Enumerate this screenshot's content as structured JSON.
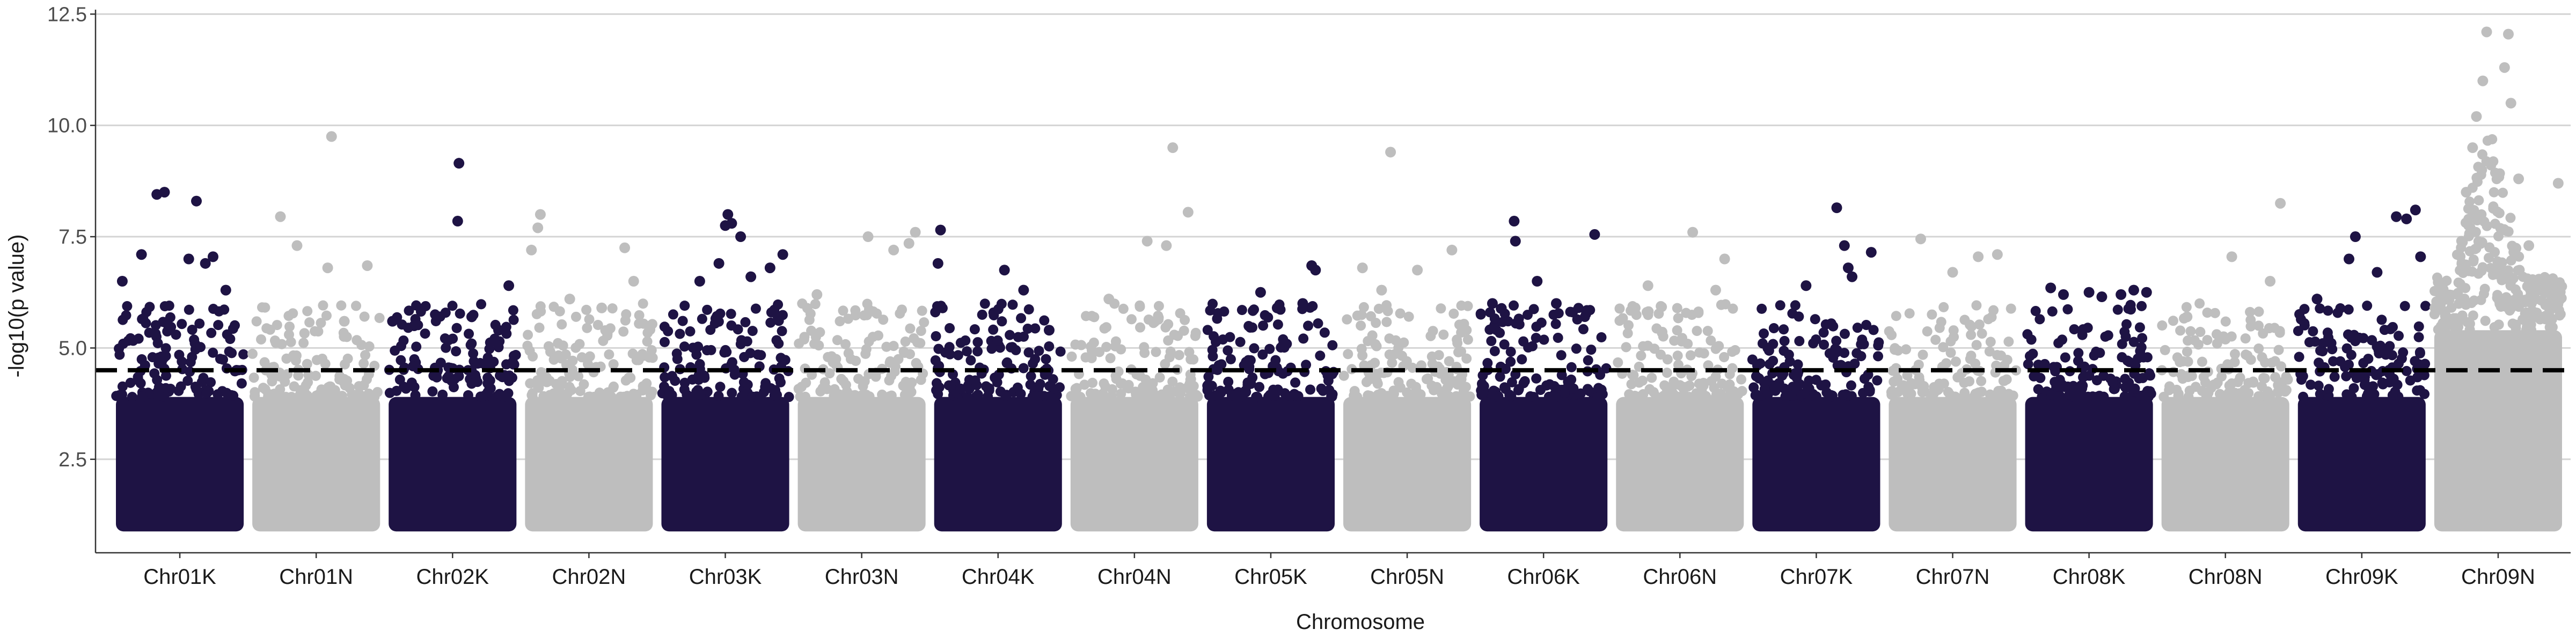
{
  "chart_data": {
    "type": "scatter",
    "subtype": "manhattan",
    "title": "",
    "xlabel": "Chromosome",
    "ylabel": "-log10(p value)",
    "ylim": [
      0.4,
      12.6
    ],
    "yticks": [
      2.5,
      5.0,
      7.5,
      10.0,
      12.5
    ],
    "ytick_labels": [
      "2.5",
      "5.0",
      "7.5",
      "10.0",
      "12.5"
    ],
    "grid": "horizontal major",
    "legend": "none",
    "threshold": {
      "y": 4.5,
      "style": "dashed",
      "color": "#000000"
    },
    "colors": {
      "dark": "#1e1344",
      "light": "#bebebe",
      "grid": "#d4d4d4",
      "axis": "#333333"
    },
    "chromosomes": [
      {
        "name": "Chr01K",
        "color": "dark",
        "top_points": [
          [
            0.05,
            6.5
          ],
          [
            0.2,
            7.1
          ],
          [
            0.32,
            8.45
          ],
          [
            0.38,
            8.5
          ],
          [
            0.63,
            8.3
          ],
          [
            0.57,
            7.0
          ],
          [
            0.76,
            7.05
          ],
          [
            0.7,
            6.9
          ],
          [
            0.86,
            6.3
          ]
        ]
      },
      {
        "name": "Chr01N",
        "color": "light",
        "top_points": [
          [
            0.22,
            7.95
          ],
          [
            0.35,
            7.3
          ],
          [
            0.62,
            9.75
          ],
          [
            0.59,
            6.8
          ],
          [
            0.9,
            6.85
          ],
          [
            0.72,
            5.6
          ]
        ]
      },
      {
        "name": "Chr02K",
        "color": "dark",
        "top_points": [
          [
            0.03,
            5.6
          ],
          [
            0.2,
            5.5
          ],
          [
            0.55,
            9.15
          ],
          [
            0.54,
            7.85
          ],
          [
            0.65,
            5.7
          ],
          [
            0.86,
            5.4
          ],
          [
            0.94,
            6.4
          ]
        ]
      },
      {
        "name": "Chr02N",
        "color": "light",
        "top_points": [
          [
            0.05,
            7.2
          ],
          [
            0.1,
            7.7
          ],
          [
            0.12,
            8.0
          ],
          [
            0.35,
            6.1
          ],
          [
            0.6,
            5.9
          ],
          [
            0.78,
            7.25
          ],
          [
            0.85,
            6.5
          ]
        ]
      },
      {
        "name": "Chr03K",
        "color": "dark",
        "top_points": [
          [
            0.3,
            6.5
          ],
          [
            0.45,
            6.9
          ],
          [
            0.5,
            7.75
          ],
          [
            0.52,
            8.0
          ],
          [
            0.55,
            7.8
          ],
          [
            0.62,
            7.5
          ],
          [
            0.7,
            6.6
          ],
          [
            0.85,
            6.8
          ],
          [
            0.95,
            7.1
          ]
        ]
      },
      {
        "name": "Chr03N",
        "color": "light",
        "top_points": [
          [
            0.15,
            6.2
          ],
          [
            0.55,
            7.5
          ],
          [
            0.75,
            7.2
          ],
          [
            0.87,
            7.35
          ],
          [
            0.92,
            7.6
          ]
        ]
      },
      {
        "name": "Chr04K",
        "color": "dark",
        "top_points": [
          [
            0.03,
            6.9
          ],
          [
            0.05,
            7.65
          ],
          [
            0.55,
            6.75
          ],
          [
            0.7,
            6.3
          ],
          [
            0.9,
            5.4
          ]
        ]
      },
      {
        "name": "Chr04N",
        "color": "light",
        "top_points": [
          [
            0.3,
            6.1
          ],
          [
            0.6,
            7.4
          ],
          [
            0.8,
            9.5
          ],
          [
            0.92,
            8.05
          ],
          [
            0.75,
            7.3
          ]
        ]
      },
      {
        "name": "Chr05K",
        "color": "dark",
        "top_points": [
          [
            0.42,
            6.25
          ],
          [
            0.55,
            5.9
          ],
          [
            0.75,
            6.0
          ],
          [
            0.82,
            6.85
          ],
          [
            0.85,
            6.75
          ]
        ]
      },
      {
        "name": "Chr05N",
        "color": "light",
        "top_points": [
          [
            0.15,
            6.8
          ],
          [
            0.3,
            6.3
          ],
          [
            0.37,
            9.4
          ],
          [
            0.58,
            6.75
          ],
          [
            0.85,
            7.2
          ]
        ]
      },
      {
        "name": "Chr06K",
        "color": "dark",
        "top_points": [
          [
            0.1,
            6.0
          ],
          [
            0.27,
            7.85
          ],
          [
            0.28,
            7.4
          ],
          [
            0.45,
            6.5
          ],
          [
            0.6,
            6.0
          ],
          [
            0.9,
            7.55
          ]
        ]
      },
      {
        "name": "Chr06N",
        "color": "light",
        "top_points": [
          [
            0.15,
            5.9
          ],
          [
            0.25,
            6.4
          ],
          [
            0.6,
            7.6
          ],
          [
            0.78,
            6.3
          ],
          [
            0.85,
            7.0
          ]
        ]
      },
      {
        "name": "Chr07K",
        "color": "dark",
        "top_points": [
          [
            0.42,
            6.4
          ],
          [
            0.72,
            7.3
          ],
          [
            0.75,
            6.8
          ],
          [
            0.78,
            6.6
          ],
          [
            0.66,
            8.15
          ],
          [
            0.93,
            7.15
          ]
        ]
      },
      {
        "name": "Chr07N",
        "color": "light",
        "top_points": [
          [
            0.25,
            7.45
          ],
          [
            0.5,
            6.7
          ],
          [
            0.7,
            7.05
          ],
          [
            0.85,
            7.1
          ]
        ]
      },
      {
        "name": "Chr08K",
        "color": "dark",
        "top_points": [
          [
            0.2,
            6.35
          ],
          [
            0.3,
            6.2
          ],
          [
            0.5,
            6.25
          ],
          [
            0.6,
            6.15
          ],
          [
            0.75,
            6.2
          ],
          [
            0.85,
            6.3
          ],
          [
            0.95,
            6.25
          ]
        ]
      },
      {
        "name": "Chr08N",
        "color": "light",
        "top_points": [
          [
            0.2,
            5.7
          ],
          [
            0.5,
            5.2
          ],
          [
            0.55,
            7.05
          ],
          [
            0.85,
            6.5
          ],
          [
            0.93,
            8.25
          ]
        ]
      },
      {
        "name": "Chr09K",
        "color": "dark",
        "top_points": [
          [
            0.15,
            6.1
          ],
          [
            0.4,
            7.0
          ],
          [
            0.45,
            7.5
          ],
          [
            0.62,
            6.7
          ],
          [
            0.77,
            7.95
          ],
          [
            0.85,
            7.9
          ],
          [
            0.92,
            8.1
          ],
          [
            0.96,
            7.05
          ]
        ]
      },
      {
        "name": "Chr09N",
        "color": "light",
        "top_points": [
          [
            0.25,
            8.5
          ],
          [
            0.3,
            9.5
          ],
          [
            0.33,
            10.2
          ],
          [
            0.38,
            11.0
          ],
          [
            0.41,
            12.1
          ],
          [
            0.55,
            11.3
          ],
          [
            0.58,
            12.05
          ],
          [
            0.6,
            10.5
          ],
          [
            0.66,
            8.8
          ],
          [
            0.74,
            7.3
          ],
          [
            0.88,
            6.0
          ],
          [
            0.97,
            8.7
          ]
        ]
      }
    ]
  }
}
